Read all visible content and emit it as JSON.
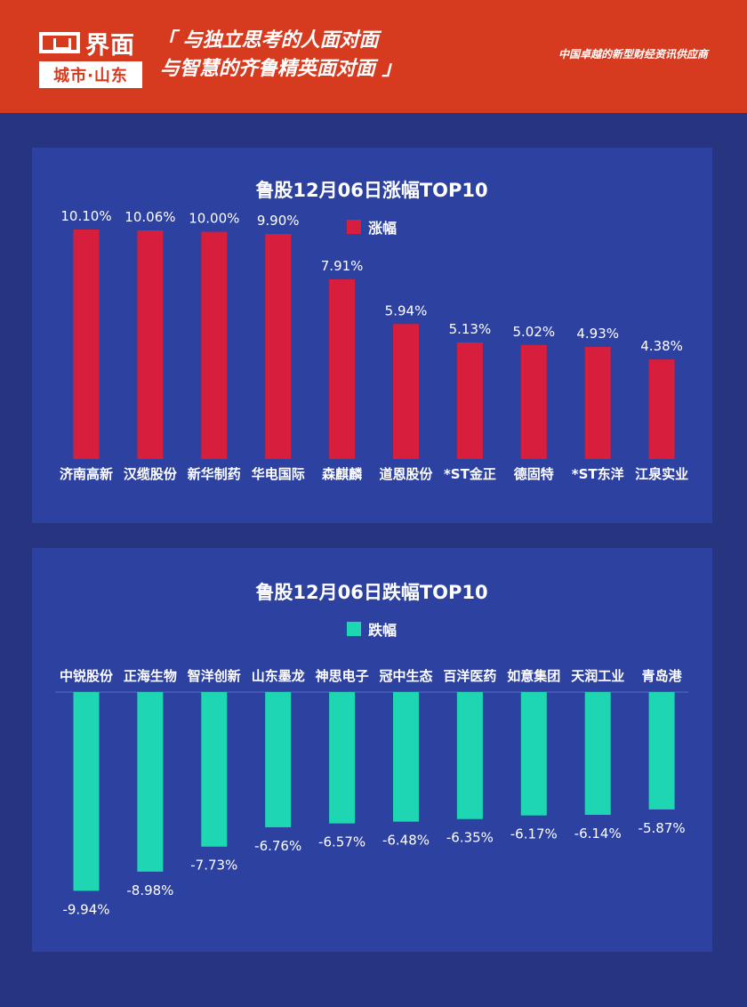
{
  "header": {
    "logo_name": "界面",
    "logo_sub": "城市·山东",
    "slogan_line1": "「 与独立思考的人面对面",
    "slogan_line2": "与智慧的齐鲁精英面对面 」",
    "tagline": "中国卓越的新型财经资讯供应商",
    "bg_color": "#d73b1f"
  },
  "chart_data": [
    {
      "type": "bar",
      "title": "鲁股12月06日涨幅TOP10",
      "legend": "涨幅",
      "legend_position": "top-right",
      "color": "#d81e3d",
      "categories": [
        "济南高新",
        "汉缆股份",
        "新华制药",
        "华电国际",
        "森麒麟",
        "道恩股份",
        "*ST金正",
        "德固特",
        "*ST东洋",
        "江泉实业"
      ],
      "values": [
        10.1,
        10.06,
        10.0,
        9.9,
        7.91,
        5.94,
        5.13,
        5.02,
        4.93,
        4.38
      ],
      "value_labels": [
        "10.10%",
        "10.06%",
        "10.00%",
        "9.90%",
        "7.91%",
        "5.94%",
        "5.13%",
        "5.02%",
        "4.93%",
        "4.38%"
      ],
      "ylim": [
        0,
        11
      ],
      "grid": false
    },
    {
      "type": "bar",
      "title": "鲁股12月06日跌幅TOP10",
      "legend": "跌幅",
      "legend_position": "top",
      "color": "#1fd6b3",
      "categories": [
        "中锐股份",
        "正海生物",
        "智洋创新",
        "山东墨龙",
        "神思电子",
        "冠中生态",
        "百洋医药",
        "如意集团",
        "天润工业",
        "青岛港"
      ],
      "values": [
        -9.94,
        -8.98,
        -7.73,
        -6.76,
        -6.57,
        -6.48,
        -6.35,
        -6.17,
        -6.14,
        -5.87
      ],
      "value_labels": [
        "-9.94%",
        "-8.98%",
        "-7.73%",
        "-6.76%",
        "-6.57%",
        "-6.48%",
        "-6.35%",
        "-6.17%",
        "-6.14%",
        "-5.87%"
      ],
      "ylim": [
        -10.5,
        0
      ],
      "grid": false
    }
  ]
}
